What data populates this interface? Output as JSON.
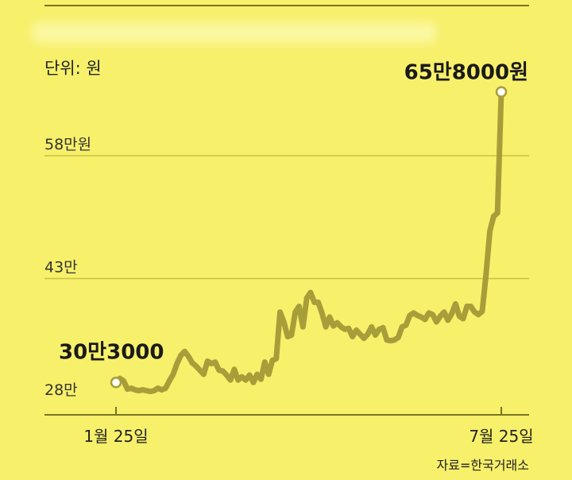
{
  "unit_label": "단위: 원",
  "source_label": "자료=한국거래소",
  "colors": {
    "background": "#f7f06b",
    "line": "#a79e3a",
    "grid": "#c9c040",
    "axis": "#7a7520"
  },
  "chart_data": {
    "type": "line",
    "title": "",
    "xlabel": "",
    "ylabel": "",
    "ylim": [
      28,
      70
    ],
    "y_unit": "만원",
    "ytick_values": [
      28,
      43,
      58
    ],
    "ytick_labels": [
      "28만",
      "43만",
      "58만원"
    ],
    "xtick_labels": [
      "1월 25일",
      "7월 25일"
    ],
    "x_range": [
      "1월 25일",
      "7월 25일"
    ],
    "grid": true,
    "series": [
      {
        "values": [
          30.3,
          30.8,
          30.5,
          29.5,
          29.6,
          29.4,
          29.3,
          29.4,
          29.3,
          29.2,
          29.3,
          29.6,
          29.4,
          29.6,
          30.5,
          31.3,
          32.6,
          33.6,
          34.1,
          33.5,
          32.7,
          32.3,
          31.8,
          31.3,
          32.9,
          32.6,
          32.8,
          31.8,
          31.7,
          31.2,
          30.6,
          31.9,
          30.6,
          31.0,
          30.6,
          31.2,
          30.3,
          31.3,
          30.7,
          32.8,
          31.3,
          33.0,
          33.2,
          38.9,
          37.7,
          35.9,
          36.1,
          38.9,
          39.6,
          37.1,
          40.6,
          41.3,
          40.1,
          40.1,
          38.8,
          37.1,
          38.3,
          37.2,
          37.6,
          37.1,
          36.8,
          36.9,
          35.9,
          36.7,
          36.2,
          35.7,
          36.2,
          37.1,
          36.1,
          36.8,
          37.0,
          35.5,
          35.4,
          35.5,
          35.8,
          37.1,
          37.3,
          38.5,
          38.8,
          38.5,
          38.3,
          38.0,
          38.8,
          38.6,
          37.7,
          38.4,
          38.9,
          37.9,
          38.7,
          39.9,
          38.4,
          38.1,
          39.6,
          39.6,
          38.9,
          38.6,
          39.0,
          43.5,
          48.8,
          50.6,
          51.0,
          65.8
        ],
        "color": "#a79e3a"
      }
    ],
    "annotations": [
      {
        "label": "30만3000",
        "point": "start"
      },
      {
        "label": "65만8000원",
        "point": "end"
      }
    ]
  }
}
